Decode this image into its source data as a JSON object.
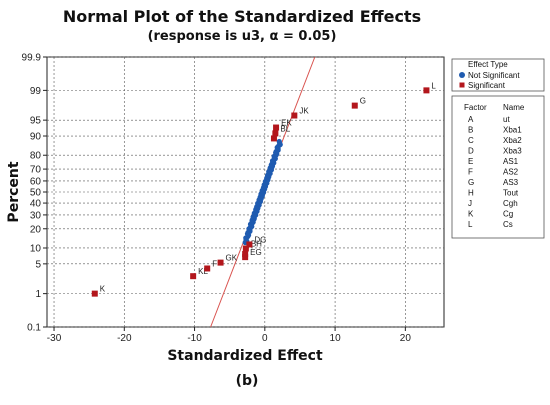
{
  "chart_data": {
    "type": "scatter",
    "title": "Normal Plot of the Standardized Effects",
    "subtitle": "(response is u3, α = 0.05)",
    "xlabel": "Standardized Effect",
    "ylabel": "Percent",
    "xlim": [
      -31,
      25.5
    ],
    "x_ticks": [
      -30,
      -20,
      -10,
      0,
      10,
      20
    ],
    "y_scale": "normal-probability",
    "y_ticks": [
      0.1,
      1,
      5,
      10,
      20,
      30,
      40,
      50,
      60,
      70,
      80,
      90,
      95,
      99,
      99.9
    ],
    "grid": true,
    "reference_line": {
      "mean": -0.3,
      "sd": 2.4
    },
    "legend": {
      "title": "Effect Type",
      "placement": "right",
      "entries": [
        {
          "label": "Not Significant",
          "color": "#1f5bb0",
          "marker": "circle"
        },
        {
          "label": "Significant",
          "color": "#b3161c",
          "marker": "square"
        }
      ]
    },
    "factor_table": {
      "headers": [
        "Factor",
        "Name"
      ],
      "rows": [
        [
          "A",
          "ut"
        ],
        [
          "B",
          "Xba1"
        ],
        [
          "C",
          "Xba2"
        ],
        [
          "D",
          "Xba3"
        ],
        [
          "E",
          "AS1"
        ],
        [
          "F",
          "AS2"
        ],
        [
          "G",
          "AS3"
        ],
        [
          "H",
          "Tout"
        ],
        [
          "J",
          "Cgh"
        ],
        [
          "K",
          "Cg"
        ],
        [
          "L",
          "Cs"
        ]
      ]
    },
    "significant_points": [
      {
        "label": "K",
        "x": -24.2,
        "y": 1.0
      },
      {
        "label": "KL",
        "x": -10.2,
        "y": 2.7
      },
      {
        "label": "F",
        "x": -8.2,
        "y": 4.0
      },
      {
        "label": "GK",
        "x": -6.3,
        "y": 5.3
      },
      {
        "label": "EG",
        "x": -2.8,
        "y": 6.8
      },
      {
        "label": "",
        "x": -2.8,
        "y": 7.8
      },
      {
        "label": "BH",
        "x": -2.7,
        "y": 9.8
      },
      {
        "label": "DG",
        "x": -2.2,
        "y": 11.5
      },
      {
        "label": "",
        "x": 1.3,
        "y": 89.0
      },
      {
        "label": "BL",
        "x": 1.5,
        "y": 91.0
      },
      {
        "label": "EK",
        "x": 1.6,
        "y": 93.0
      },
      {
        "label": "JK",
        "x": 4.2,
        "y": 96.0
      },
      {
        "label": "G",
        "x": 12.8,
        "y": 97.6
      },
      {
        "label": "L",
        "x": 23.0,
        "y": 99.0
      }
    ],
    "not_significant_count": 100,
    "caption": "(b)"
  },
  "colors": {
    "not_significant": "#1f5bb0",
    "significant": "#b3161c",
    "reference_line": "#d9534f",
    "grid": "#555555"
  }
}
